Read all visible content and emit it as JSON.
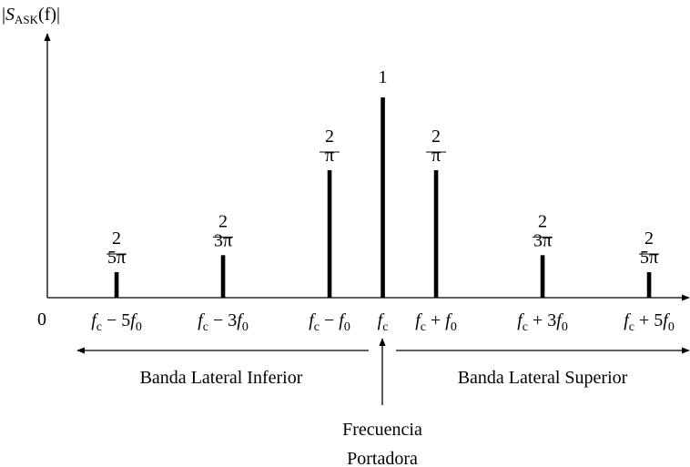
{
  "chart_data": {
    "type": "stem",
    "y_label": "|SASK(f)|",
    "origin_label": "0",
    "x": [
      -5,
      -3,
      -1,
      0,
      1,
      3,
      5
    ],
    "values": [
      0.1273,
      0.2122,
      0.6366,
      1,
      0.6366,
      0.2122,
      0.1273
    ],
    "value_labels": [
      "2/5π",
      "2/3π",
      "2/π",
      "1",
      "2/π",
      "2/3π",
      "2/5π"
    ],
    "color": "#000000",
    "xlim": [
      -6.3,
      5.7
    ],
    "xticks": [
      {
        "value": -5,
        "label": "fc − 5f0"
      },
      {
        "value": -3,
        "label": "fc − 3f0"
      },
      {
        "value": -1,
        "label": "fc − f0"
      },
      {
        "value": 0,
        "label": "fc"
      },
      {
        "value": 1,
        "label": "fc + f0"
      },
      {
        "value": 3,
        "label": "fc + 3f0"
      },
      {
        "value": 5,
        "label": "fc + 5f0"
      }
    ],
    "ylim": [
      0,
      1.3
    ],
    "annotations": {
      "lower_band": "Banda Lateral Inferior",
      "upper_band": "Banda Lateral Superior",
      "carrier": [
        "Frecuencia",
        "Portadora"
      ]
    }
  }
}
